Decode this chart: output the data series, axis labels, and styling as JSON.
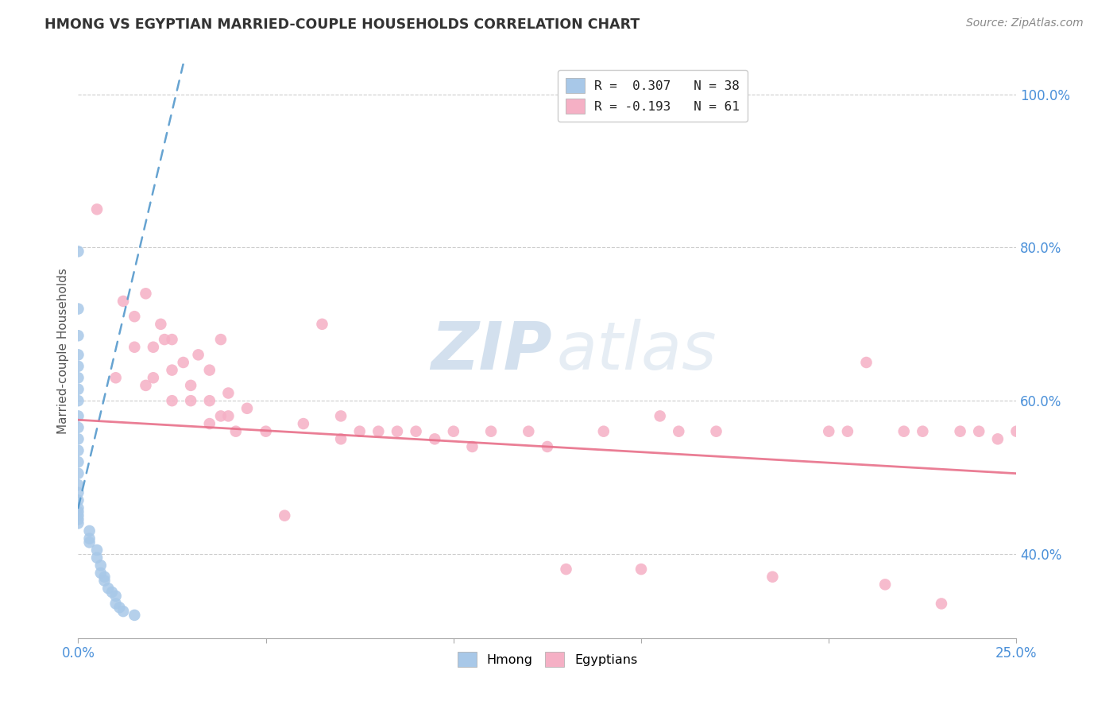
{
  "title": "HMONG VS EGYPTIAN MARRIED-COUPLE HOUSEHOLDS CORRELATION CHART",
  "source": "Source: ZipAtlas.com",
  "ylabel": "Married-couple Households",
  "xlim": [
    0.0,
    25.0
  ],
  "ylim": [
    29.0,
    104.0
  ],
  "legend_label1": "R =  0.307   N = 38",
  "legend_label2": "R = -0.193   N = 61",
  "legend_bottom1": "Hmong",
  "legend_bottom2": "Egyptians",
  "hmong_color": "#a8c8e8",
  "egyptian_color": "#f5b0c5",
  "hmong_line_color": "#5599cc",
  "egyptian_line_color": "#e8708a",
  "watermark_zip": "ZIP",
  "watermark_atlas": "atlas",
  "y_ticks": [
    40.0,
    60.0,
    80.0,
    100.0
  ],
  "y_tick_labels": [
    "40.0%",
    "60.0%",
    "80.0%",
    "100.0%"
  ],
  "x_ticks": [
    0.0,
    5.0,
    10.0,
    15.0,
    20.0,
    25.0
  ],
  "x_tick_labels": [
    "0.0%",
    "",
    "",
    "",
    "",
    "25.0%"
  ],
  "hmong_line_x0": 0.0,
  "hmong_line_x1": 2.8,
  "hmong_line_y0": 46.0,
  "hmong_line_y1": 104.0,
  "egyptian_line_x0": 0.0,
  "egyptian_line_x1": 25.0,
  "egyptian_line_y0": 57.5,
  "egyptian_line_y1": 50.5,
  "hmong_x": [
    0.0,
    0.0,
    0.0,
    0.0,
    0.0,
    0.0,
    0.0,
    0.0,
    0.0,
    0.0,
    0.0,
    0.0,
    0.0,
    0.0,
    0.0,
    0.0,
    0.0,
    0.0,
    0.0,
    0.0,
    0.0,
    0.0,
    0.3,
    0.3,
    0.3,
    0.5,
    0.5,
    0.6,
    0.6,
    0.7,
    0.7,
    0.8,
    0.9,
    1.0,
    1.0,
    1.1,
    1.2,
    1.5
  ],
  "hmong_y": [
    79.5,
    72.0,
    68.5,
    66.0,
    64.5,
    63.0,
    61.5,
    60.0,
    58.0,
    56.5,
    55.0,
    53.5,
    52.0,
    50.5,
    49.0,
    48.0,
    47.0,
    46.0,
    45.5,
    45.0,
    44.5,
    44.0,
    43.0,
    42.0,
    41.5,
    40.5,
    39.5,
    38.5,
    37.5,
    37.0,
    36.5,
    35.5,
    35.0,
    34.5,
    33.5,
    33.0,
    32.5,
    32.0
  ],
  "egyptian_x": [
    0.5,
    1.0,
    1.2,
    1.5,
    1.5,
    1.8,
    2.0,
    2.0,
    2.2,
    2.3,
    2.5,
    2.5,
    2.8,
    3.0,
    3.0,
    3.2,
    3.5,
    3.5,
    3.5,
    3.8,
    4.0,
    4.0,
    4.2,
    4.5,
    5.0,
    5.5,
    6.0,
    6.5,
    7.0,
    7.0,
    7.5,
    8.0,
    8.5,
    9.0,
    9.5,
    10.0,
    10.5,
    11.0,
    12.0,
    12.5,
    13.0,
    14.0,
    15.0,
    15.5,
    16.0,
    17.0,
    18.5,
    20.0,
    20.5,
    21.0,
    21.5,
    22.0,
    22.5,
    23.0,
    23.5,
    24.0,
    24.5,
    25.0,
    3.8,
    2.5,
    1.8
  ],
  "egyptian_y": [
    85.0,
    63.0,
    73.0,
    71.0,
    67.0,
    74.0,
    67.0,
    63.0,
    70.0,
    68.0,
    64.0,
    60.0,
    65.0,
    62.0,
    60.0,
    66.0,
    64.0,
    60.0,
    57.0,
    58.0,
    61.0,
    58.0,
    56.0,
    59.0,
    56.0,
    45.0,
    57.0,
    70.0,
    58.0,
    55.0,
    56.0,
    56.0,
    56.0,
    56.0,
    55.0,
    56.0,
    54.0,
    56.0,
    56.0,
    54.0,
    38.0,
    56.0,
    38.0,
    58.0,
    56.0,
    56.0,
    37.0,
    56.0,
    56.0,
    65.0,
    36.0,
    56.0,
    56.0,
    33.5,
    56.0,
    56.0,
    55.0,
    56.0,
    68.0,
    68.0,
    62.0
  ]
}
